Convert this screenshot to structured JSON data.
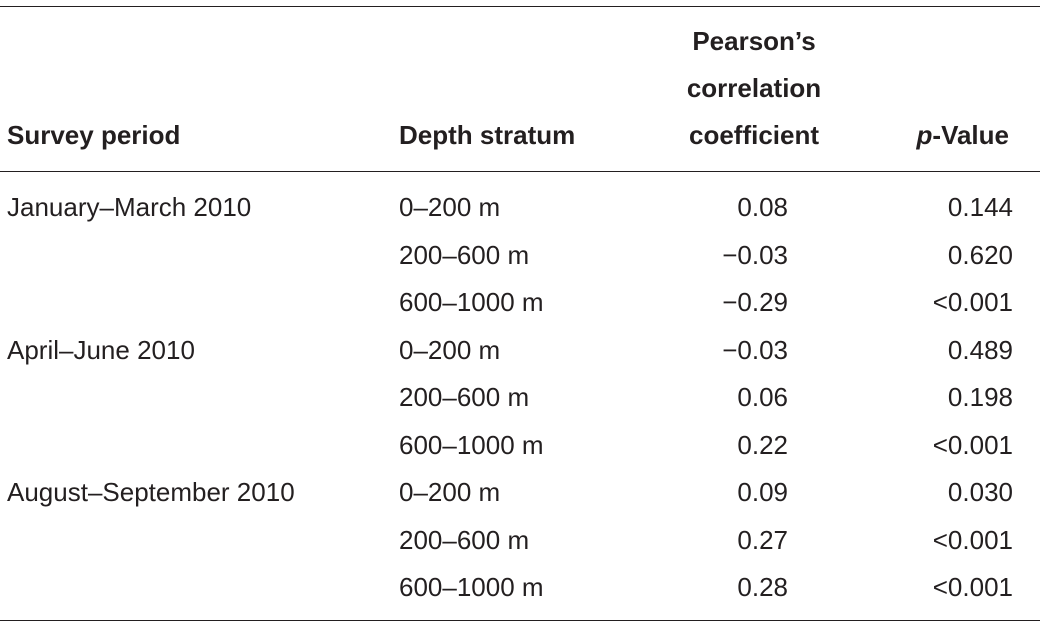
{
  "table": {
    "headers": {
      "survey_period": "Survey period",
      "depth_stratum": "Depth stratum",
      "pearson": [
        "Pearson’s",
        "correlation",
        "coefficient"
      ],
      "p_value_italic": "p",
      "p_value_rest": "-Value"
    },
    "rows": [
      {
        "period": "January–March 2010",
        "depth": "0–200 m",
        "r": "0.08",
        "p": "0.144"
      },
      {
        "period": "",
        "depth": "200–600 m",
        "r": "−0.03",
        "p": "0.620"
      },
      {
        "period": "",
        "depth": "600–1000 m",
        "r": "−0.29",
        "p": "<0.001"
      },
      {
        "period": "April–June 2010",
        "depth": "0–200 m",
        "r": "−0.03",
        "p": "0.489"
      },
      {
        "period": "",
        "depth": "200–600 m",
        "r": "0.06",
        "p": "0.198"
      },
      {
        "period": "",
        "depth": "600–1000 m",
        "r": "0.22",
        "p": "<0.001"
      },
      {
        "period": "August–September 2010",
        "depth": "0–200 m",
        "r": "0.09",
        "p": "0.030"
      },
      {
        "period": "",
        "depth": "200–600 m",
        "r": "0.27",
        "p": "<0.001"
      },
      {
        "period": "",
        "depth": "600–1000 m",
        "r": "0.28",
        "p": "<0.001"
      }
    ]
  }
}
